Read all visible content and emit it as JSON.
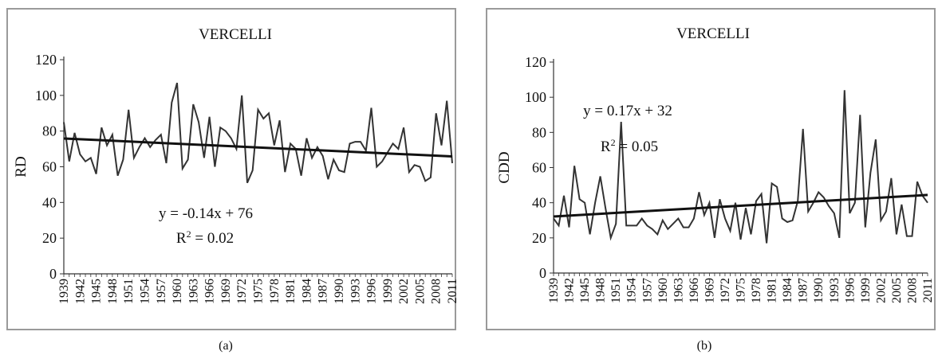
{
  "captions": [
    "(a)",
    "(b)"
  ],
  "chart_data": [
    {
      "type": "line",
      "title": "VERCELLI",
      "xlabel": "",
      "ylabel": "RD",
      "ylim": [
        0,
        120
      ],
      "yticks": [
        0,
        20,
        40,
        60,
        80,
        100,
        120
      ],
      "xticks": [
        "1939",
        "1942",
        "1945",
        "1948",
        "1951",
        "1954",
        "1957",
        "1960",
        "1963",
        "1966",
        "1969",
        "1972",
        "1975",
        "1978",
        "1981",
        "1984",
        "1987",
        "1990",
        "1993",
        "1996",
        "1999",
        "2002",
        "2005",
        "2008",
        "2011"
      ],
      "x_start": 1939,
      "x_end": 2012,
      "series": [
        {
          "values": [
            85,
            63,
            79,
            67,
            63,
            65,
            56,
            82,
            72,
            78,
            55,
            64,
            92,
            65,
            71,
            76,
            71,
            75,
            78,
            62,
            96,
            107,
            59,
            64,
            95,
            85,
            65,
            88,
            60,
            82,
            80,
            76,
            70,
            100,
            51,
            58,
            92,
            87,
            90,
            72,
            86,
            57,
            73,
            70,
            55,
            76,
            65,
            71,
            66,
            53,
            64,
            58,
            57,
            73,
            74,
            74,
            69,
            93,
            60,
            63,
            68,
            73,
            70,
            82,
            57,
            61,
            60,
            52,
            54,
            90,
            72,
            97,
            62
          ]
        }
      ],
      "trendline": {
        "slope": -0.14,
        "intercept": 76
      },
      "equation": "y = -0.14x + 76",
      "r2_label": "R",
      "r2_sup": "2",
      "r2_value": " = 0.02",
      "grid": false
    },
    {
      "type": "line",
      "title": "VERCELLI",
      "xlabel": "",
      "ylabel": "CDD",
      "ylim": [
        0,
        120
      ],
      "yticks": [
        0,
        20,
        40,
        60,
        80,
        100,
        120
      ],
      "xticks": [
        "1939",
        "1942",
        "1945",
        "1948",
        "1951",
        "1954",
        "1957",
        "1960",
        "1963",
        "1966",
        "1969",
        "1972",
        "1975",
        "1978",
        "1981",
        "1984",
        "1987",
        "1990",
        "1993",
        "1996",
        "1999",
        "2002",
        "2005",
        "2008",
        "2011"
      ],
      "x_start": 1939,
      "x_end": 2012,
      "series": [
        {
          "values": [
            31,
            27,
            44,
            26,
            61,
            42,
            40,
            22,
            40,
            55,
            37,
            20,
            28,
            86,
            27,
            27,
            27,
            31,
            27,
            25,
            22,
            30,
            25,
            28,
            31,
            26,
            26,
            31,
            46,
            33,
            40,
            20,
            42,
            31,
            24,
            40,
            19,
            37,
            22,
            41,
            45,
            17,
            51,
            49,
            31,
            29,
            30,
            41,
            82,
            35,
            40,
            46,
            43,
            38,
            34,
            20,
            104,
            34,
            40,
            90,
            26,
            57,
            76,
            30,
            35,
            54,
            22,
            39,
            21,
            21,
            52,
            44,
            40
          ]
        }
      ],
      "trendline": {
        "slope": 0.17,
        "intercept": 32
      },
      "equation": "y  = 0.17x + 32",
      "r2_label": "R",
      "r2_sup": "2",
      "r2_value": " = 0.05",
      "grid": false
    }
  ]
}
